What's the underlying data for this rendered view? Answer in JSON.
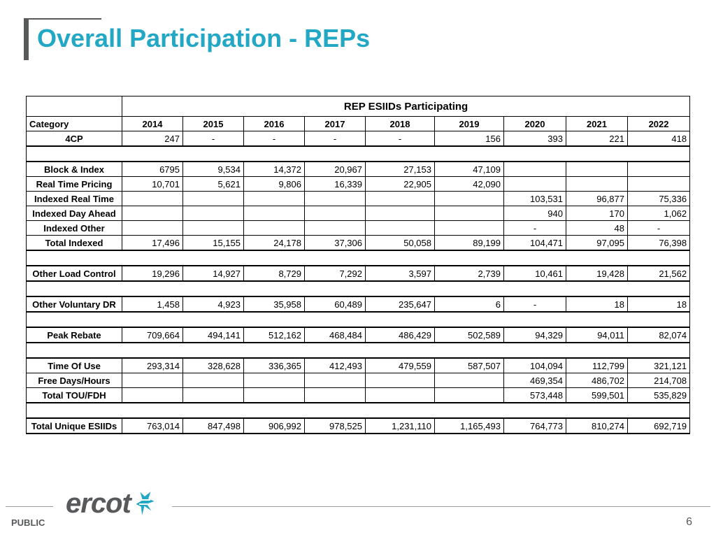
{
  "title": "Overall Participation - REPs",
  "table": {
    "title": "REP ESIIDs Participating",
    "category_header": "Category",
    "years": [
      "2014",
      "2015",
      "2016",
      "2017",
      "2018",
      "2019",
      "2020",
      "2021",
      "2022"
    ],
    "rows": {
      "cp4": {
        "label": "4CP",
        "values": [
          "247",
          "-",
          "-",
          "-",
          "-",
          "156",
          "393",
          "221",
          "418"
        ]
      },
      "block": {
        "label": "Block & Index",
        "values": [
          "6795",
          "9,534",
          "14,372",
          "20,967",
          "27,153",
          "47,109",
          "",
          "",
          ""
        ]
      },
      "rtp": {
        "label": "Real Time Pricing",
        "values": [
          "10,701",
          "5,621",
          "9,806",
          "16,339",
          "22,905",
          "42,090",
          "",
          "",
          ""
        ]
      },
      "irt": {
        "label": "Indexed Real Time",
        "values": [
          "",
          "",
          "",
          "",
          "",
          "",
          "103,531",
          "96,877",
          "75,336"
        ]
      },
      "ida": {
        "label": "Indexed Day Ahead",
        "values": [
          "",
          "",
          "",
          "",
          "",
          "",
          "940",
          "170",
          "1,062"
        ]
      },
      "io": {
        "label": "Indexed Other",
        "values": [
          "",
          "",
          "",
          "",
          "",
          "",
          "-",
          "48",
          "-"
        ]
      },
      "ti": {
        "label": "Total Indexed",
        "values": [
          "17,496",
          "15,155",
          "24,178",
          "37,306",
          "50,058",
          "89,199",
          "104,471",
          "97,095",
          "76,398"
        ]
      },
      "olc": {
        "label": "Other Load Control",
        "values": [
          "19,296",
          "14,927",
          "8,729",
          "7,292",
          "3,597",
          "2,739",
          "10,461",
          "19,428",
          "21,562"
        ]
      },
      "ovd": {
        "label": "Other Voluntary DR",
        "values": [
          "1,458",
          "4,923",
          "35,958",
          "60,489",
          "235,647",
          "6",
          "-",
          "18",
          "18"
        ]
      },
      "pr": {
        "label": "Peak Rebate",
        "values": [
          "709,664",
          "494,141",
          "512,162",
          "468,484",
          "486,429",
          "502,589",
          "94,329",
          "94,011",
          "82,074"
        ]
      },
      "tou": {
        "label": "Time Of Use",
        "values": [
          "293,314",
          "328,628",
          "336,365",
          "412,493",
          "479,559",
          "587,507",
          "104,094",
          "112,799",
          "321,121"
        ]
      },
      "fdh": {
        "label": "Free Days/Hours",
        "values": [
          "",
          "",
          "",
          "",
          "",
          "",
          "469,354",
          "486,702",
          "214,708"
        ]
      },
      "ttf": {
        "label": "Total TOU/FDH",
        "values": [
          "",
          "",
          "",
          "",
          "",
          "",
          "573,448",
          "599,501",
          "535,829"
        ]
      },
      "tue": {
        "label": "Total Unique ESIIDs",
        "values": [
          "763,014",
          "847,498",
          "906,992",
          "978,525",
          "1,231,110",
          "1,165,493",
          "764,773",
          "810,274",
          "692,719"
        ]
      }
    }
  },
  "footer": {
    "public_label": "PUBLIC",
    "logo_text": "ercot",
    "page_number": "6",
    "brand_color": "#22a7c5",
    "logo_color": "#58595b"
  }
}
